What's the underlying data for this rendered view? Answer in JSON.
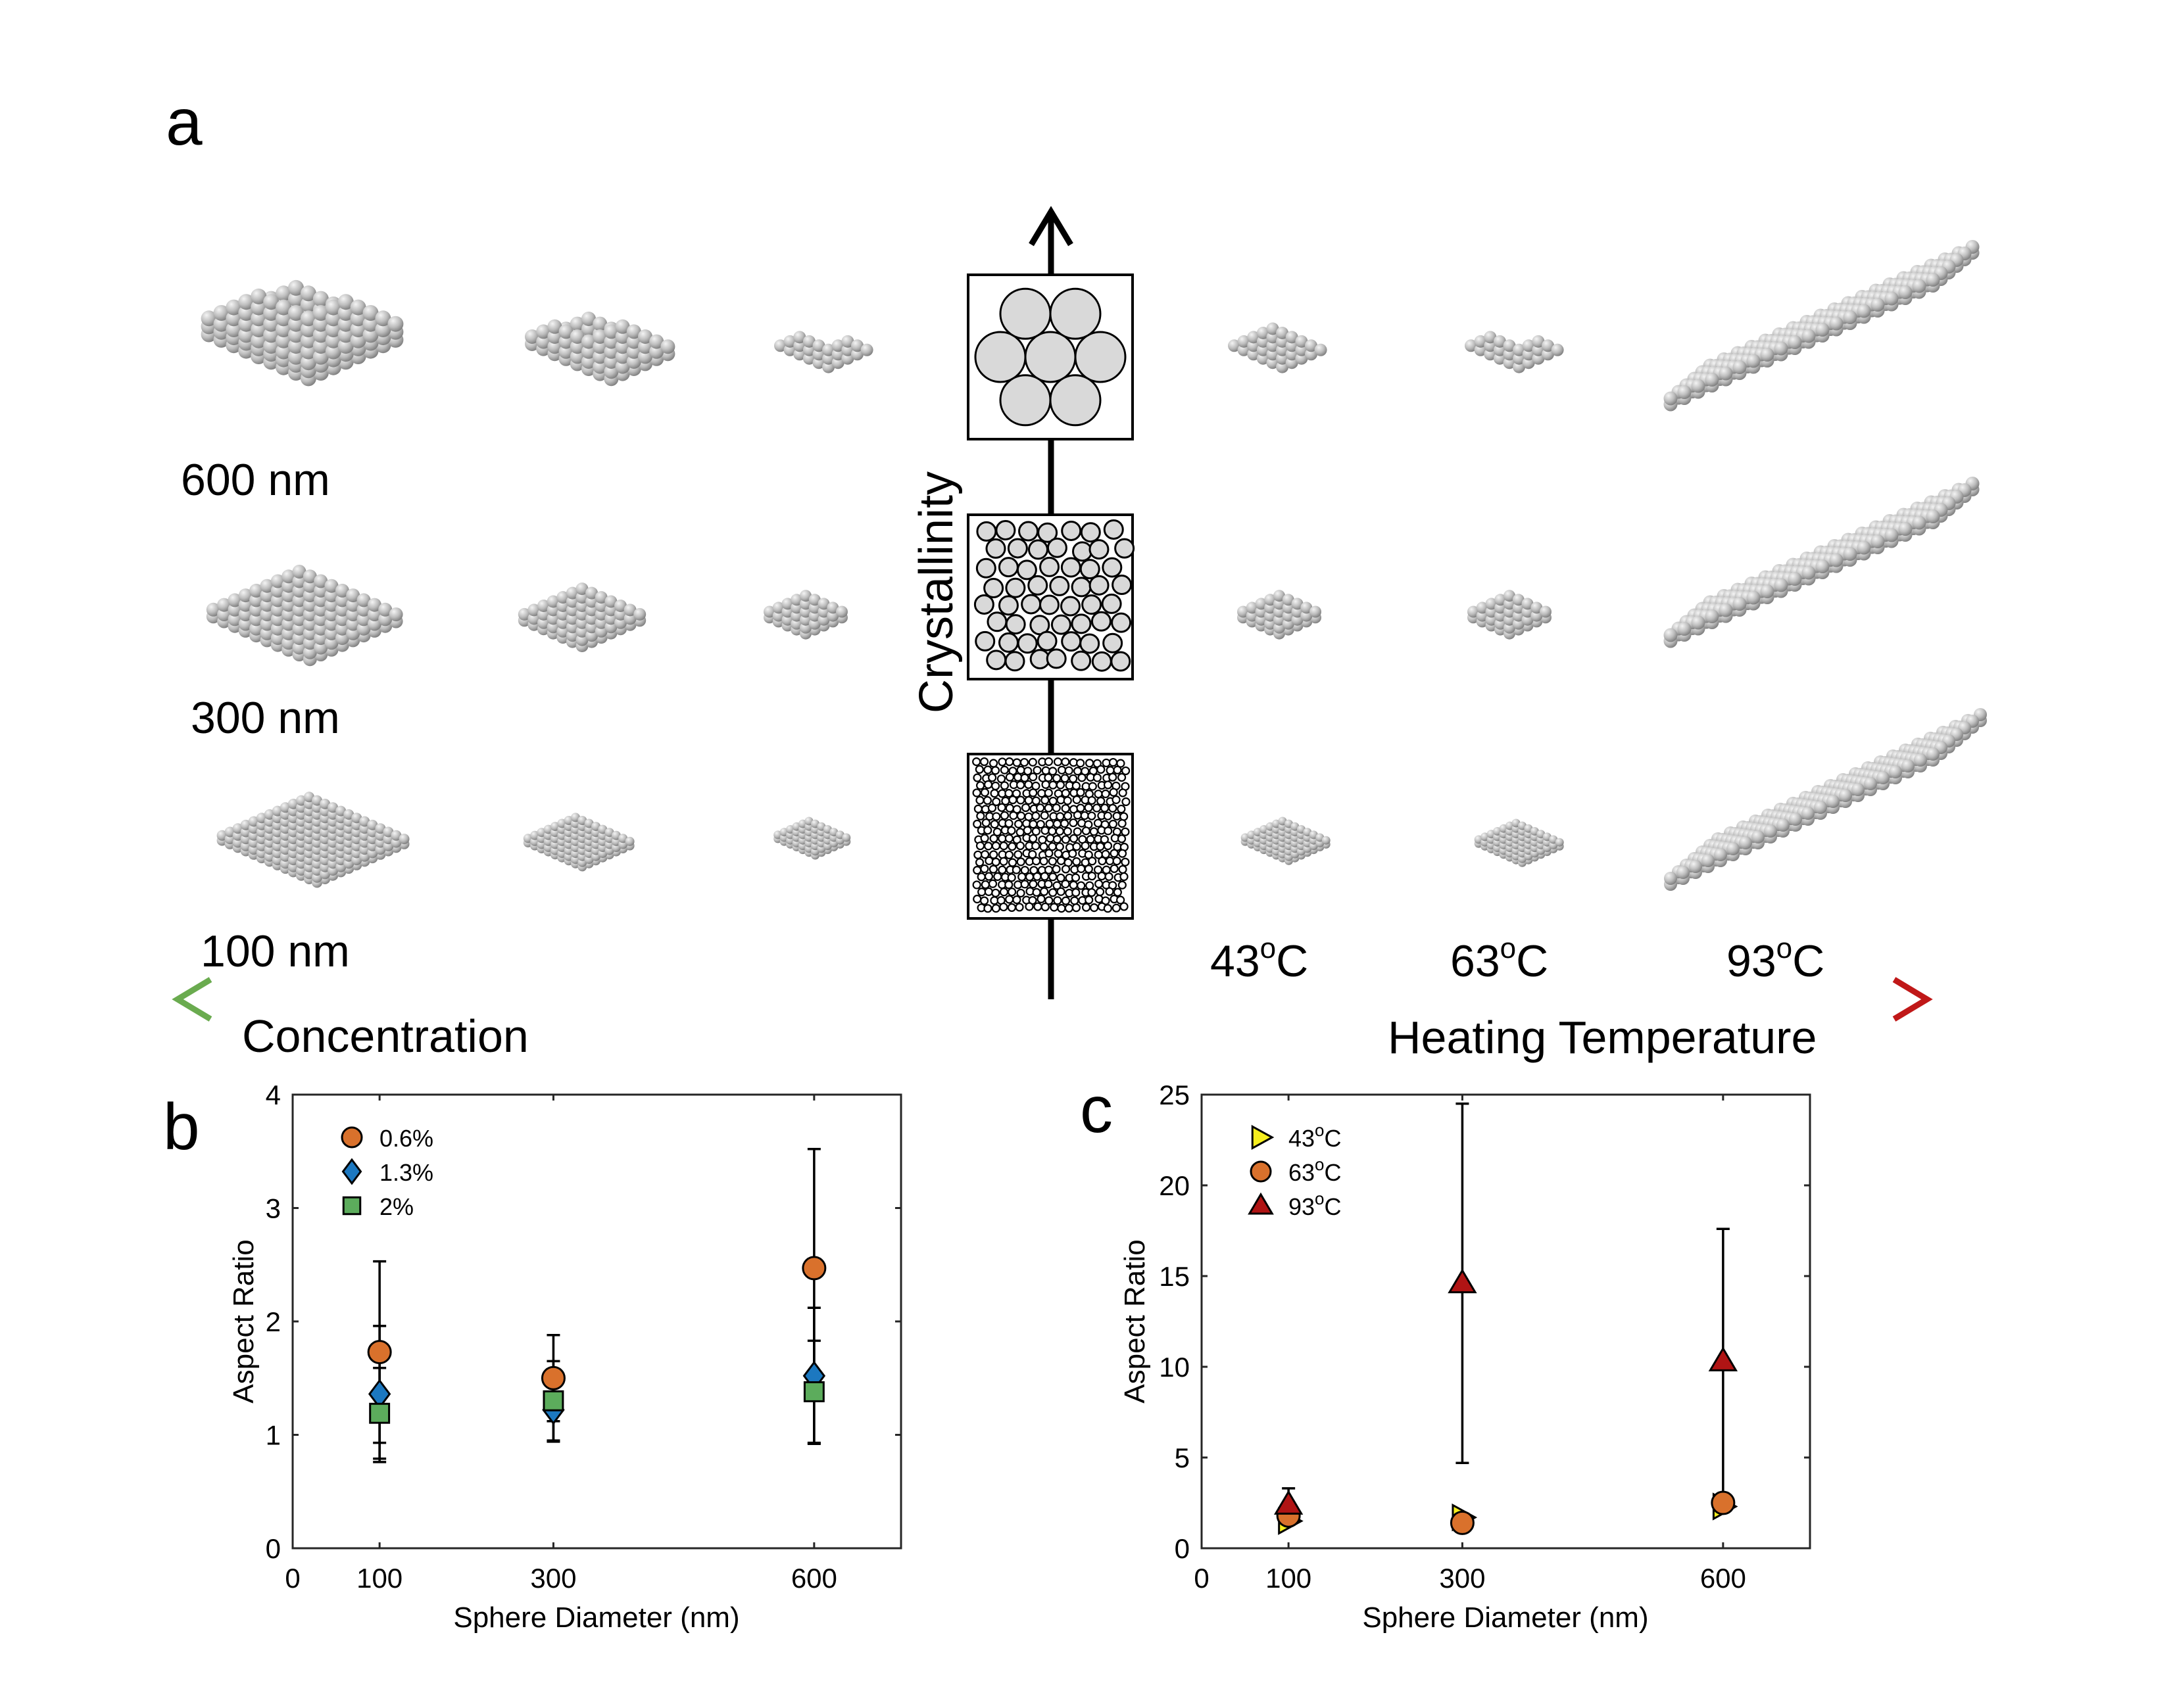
{
  "panel_a": {
    "letter": "a",
    "size_labels": [
      "600 nm",
      "300 nm",
      "100 nm"
    ],
    "temp_labels": [
      "43",
      "63",
      "93"
    ],
    "temp_unit_sup": "o",
    "temp_unit": "C",
    "vertical_axis_label": "Crystallinity",
    "left_axis_label": "Concentration",
    "right_axis_label": "Heating Temperature",
    "left_gradient_colors": [
      "#6aab4f",
      "#3f78c0",
      "#d8743a"
    ],
    "right_gradient_colors": [
      "#f5e61e",
      "#e0761c",
      "#c01818"
    ]
  },
  "chart_data": [
    {
      "letter": "b",
      "type": "scatter",
      "xlabel": "Sphere Diameter (nm)",
      "ylabel": "Aspect Ratio",
      "xlim": [
        0,
        700
      ],
      "ylim": [
        0,
        4
      ],
      "xticks": [
        0,
        100,
        300,
        600
      ],
      "yticks": [
        0,
        1,
        2,
        3,
        4
      ],
      "legend_position": "top-left",
      "series": [
        {
          "name": "0.6%",
          "marker": "circle",
          "color": "#d9712c",
          "x": [
            100,
            300,
            600
          ],
          "y": [
            1.73,
            1.5,
            2.47
          ],
          "err": [
            0.8,
            0.38,
            1.05
          ]
        },
        {
          "name": "1.3%",
          "marker": "diamond",
          "color": "#1c78c0",
          "x": [
            100,
            300,
            600
          ],
          "y": [
            1.36,
            1.22,
            1.52
          ],
          "err": [
            0.6,
            0.28,
            0.6
          ]
        },
        {
          "name": "2%",
          "marker": "square",
          "color": "#5cac5c",
          "x": [
            100,
            300,
            600
          ],
          "y": [
            1.19,
            1.3,
            1.38
          ],
          "err": [
            0.4,
            0.35,
            0.45
          ]
        }
      ]
    },
    {
      "letter": "c",
      "type": "scatter",
      "xlabel": "Sphere Diameter (nm)",
      "ylabel": "Aspect Ratio",
      "xlim": [
        0,
        700
      ],
      "ylim": [
        0,
        25
      ],
      "xticks": [
        0,
        100,
        300,
        600
      ],
      "yticks": [
        0,
        5,
        10,
        15,
        20,
        25
      ],
      "legend_position": "top-left",
      "legend_unit_sup": "o",
      "legend_unit": "C",
      "series": [
        {
          "name": "43",
          "marker": "triangle-right",
          "color": "#f5ee1e",
          "x": [
            100,
            300,
            600
          ],
          "y": [
            1.5,
            1.7,
            2.3
          ],
          "err": [
            0,
            0,
            0
          ]
        },
        {
          "name": "63",
          "marker": "circle",
          "color": "#d9712c",
          "x": [
            100,
            300,
            600
          ],
          "y": [
            1.8,
            1.4,
            2.5
          ],
          "err": [
            0,
            0,
            0
          ]
        },
        {
          "name": "93",
          "marker": "triangle-up",
          "color": "#b01414",
          "x": [
            100,
            300,
            600
          ],
          "y": [
            2.4,
            14.6,
            10.3
          ],
          "err": [
            0.9,
            9.9,
            7.3
          ]
        }
      ]
    }
  ]
}
